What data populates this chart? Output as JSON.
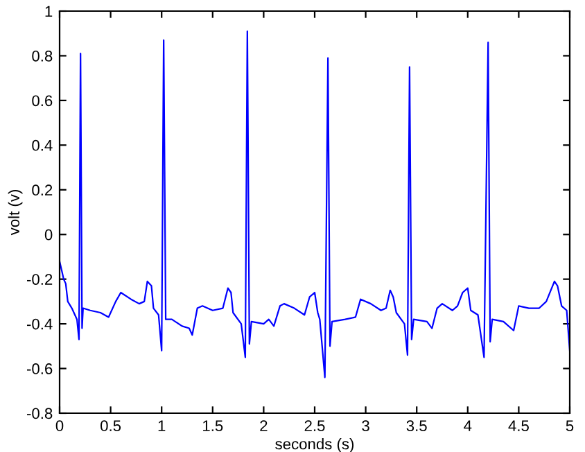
{
  "chart_data": {
    "type": "line",
    "xlabel": "seconds (s)",
    "ylabel": "volt (v)",
    "series": [
      {
        "color": "#0000ff",
        "x": [
          0,
          0.02,
          0.04,
          0.06,
          0.08,
          0.12,
          0.15,
          0.17,
          0.19,
          0.205,
          0.22,
          0.23,
          0.3,
          0.4,
          0.48,
          0.55,
          0.6,
          0.7,
          0.78,
          0.83,
          0.86,
          0.9,
          0.92,
          0.97,
          1.0,
          1.02,
          1.04,
          1.1,
          1.2,
          1.27,
          1.3,
          1.35,
          1.4,
          1.5,
          1.6,
          1.65,
          1.68,
          1.7,
          1.78,
          1.82,
          1.84,
          1.86,
          1.88,
          2.0,
          2.05,
          2.1,
          2.16,
          2.2,
          2.3,
          2.4,
          2.45,
          2.5,
          2.53,
          2.55,
          2.6,
          2.63,
          2.65,
          2.67,
          2.8,
          2.9,
          2.95,
          3.05,
          3.15,
          3.2,
          3.24,
          3.27,
          3.3,
          3.38,
          3.41,
          3.43,
          3.45,
          3.47,
          3.6,
          3.65,
          3.7,
          3.75,
          3.85,
          3.9,
          3.95,
          4.0,
          4.03,
          4.1,
          4.16,
          4.2,
          4.22,
          4.24,
          4.35,
          4.45,
          4.5,
          4.6,
          4.7,
          4.77,
          4.85,
          4.88,
          4.92,
          4.97,
          5.0
        ],
        "values": [
          -0.12,
          -0.16,
          -0.2,
          -0.22,
          -0.3,
          -0.33,
          -0.36,
          -0.38,
          -0.47,
          0.81,
          -0.42,
          -0.33,
          -0.34,
          -0.35,
          -0.37,
          -0.3,
          -0.26,
          -0.29,
          -0.31,
          -0.3,
          -0.21,
          -0.23,
          -0.33,
          -0.36,
          -0.52,
          0.87,
          -0.38,
          -0.38,
          -0.41,
          -0.42,
          -0.45,
          -0.33,
          -0.32,
          -0.34,
          -0.33,
          -0.24,
          -0.26,
          -0.35,
          -0.4,
          -0.55,
          0.91,
          -0.49,
          -0.39,
          -0.4,
          -0.38,
          -0.41,
          -0.32,
          -0.31,
          -0.33,
          -0.36,
          -0.28,
          -0.26,
          -0.35,
          -0.38,
          -0.64,
          0.79,
          -0.5,
          -0.39,
          -0.38,
          -0.37,
          -0.29,
          -0.31,
          -0.34,
          -0.33,
          -0.25,
          -0.28,
          -0.35,
          -0.4,
          -0.54,
          0.75,
          -0.47,
          -0.38,
          -0.39,
          -0.42,
          -0.33,
          -0.31,
          -0.34,
          -0.32,
          -0.26,
          -0.24,
          -0.34,
          -0.36,
          -0.55,
          0.86,
          -0.48,
          -0.38,
          -0.39,
          -0.43,
          -0.32,
          -0.33,
          -0.33,
          -0.3,
          -0.21,
          -0.23,
          -0.32,
          -0.34,
          -0.52
        ]
      }
    ],
    "xlim": [
      0,
      5
    ],
    "xticks": [
      0,
      0.5,
      1,
      1.5,
      2,
      2.5,
      3,
      3.5,
      4,
      4.5,
      5
    ],
    "ylim": [
      -0.8,
      1
    ],
    "yticks": [
      -0.8,
      -0.6,
      -0.4,
      -0.2,
      0,
      0.2,
      0.4,
      0.6,
      0.8,
      1
    ],
    "grid": false,
    "legend": false
  }
}
